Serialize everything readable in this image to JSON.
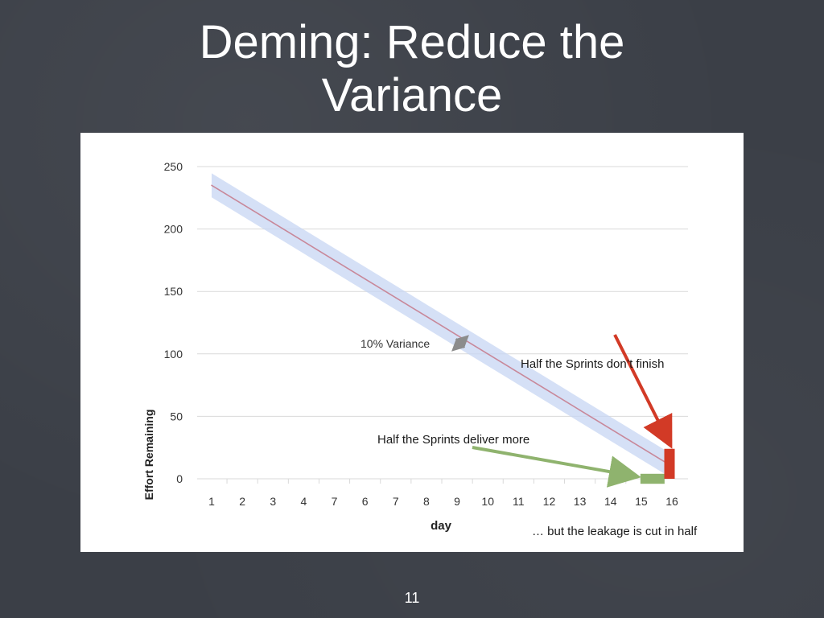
{
  "slide": {
    "title_line1": "Deming: Reduce the",
    "title_line2": "Variance",
    "page_number": "11"
  },
  "colors": {
    "background": "#3b3f47",
    "trend_line": "#c8889a",
    "variance_band": "#c7d5f3",
    "red_bar": "#d23a26",
    "green_bar": "#8fb36e",
    "red_arrow": "#d23a26",
    "green_arrow": "#8fb36e",
    "grid": "#d9d9d9"
  },
  "chart_data": {
    "type": "line",
    "xlabel": "day",
    "ylabel": "Effort Remaining",
    "categories": [
      "1",
      "2",
      "3",
      "4",
      "7",
      "6",
      "7",
      "8",
      "9",
      "10",
      "11",
      "12",
      "13",
      "14",
      "15",
      "16"
    ],
    "ylim": [
      0,
      250
    ],
    "yticks": [
      0,
      50,
      100,
      150,
      200,
      250
    ],
    "grid": true,
    "series": [
      {
        "values": [
          235,
          220,
          205,
          190,
          175,
          160,
          145,
          130,
          115,
          100,
          85,
          70,
          55,
          40,
          25,
          10
        ],
        "color": "#c8889a"
      }
    ],
    "variance_band_pct": 10,
    "bars": [
      {
        "category": "15",
        "value": 0,
        "low": -4,
        "high": 4,
        "color": "#8fb36e"
      },
      {
        "category": "16",
        "value": 0,
        "low": 0,
        "high": 24,
        "color": "#d23a26"
      }
    ],
    "annotations": {
      "variance": "10% Variance",
      "dont_finish": "Half the Sprints don’t finish",
      "deliver_more": "Half the Sprints deliver more",
      "leakage": "… but the leakage is cut in half"
    }
  }
}
